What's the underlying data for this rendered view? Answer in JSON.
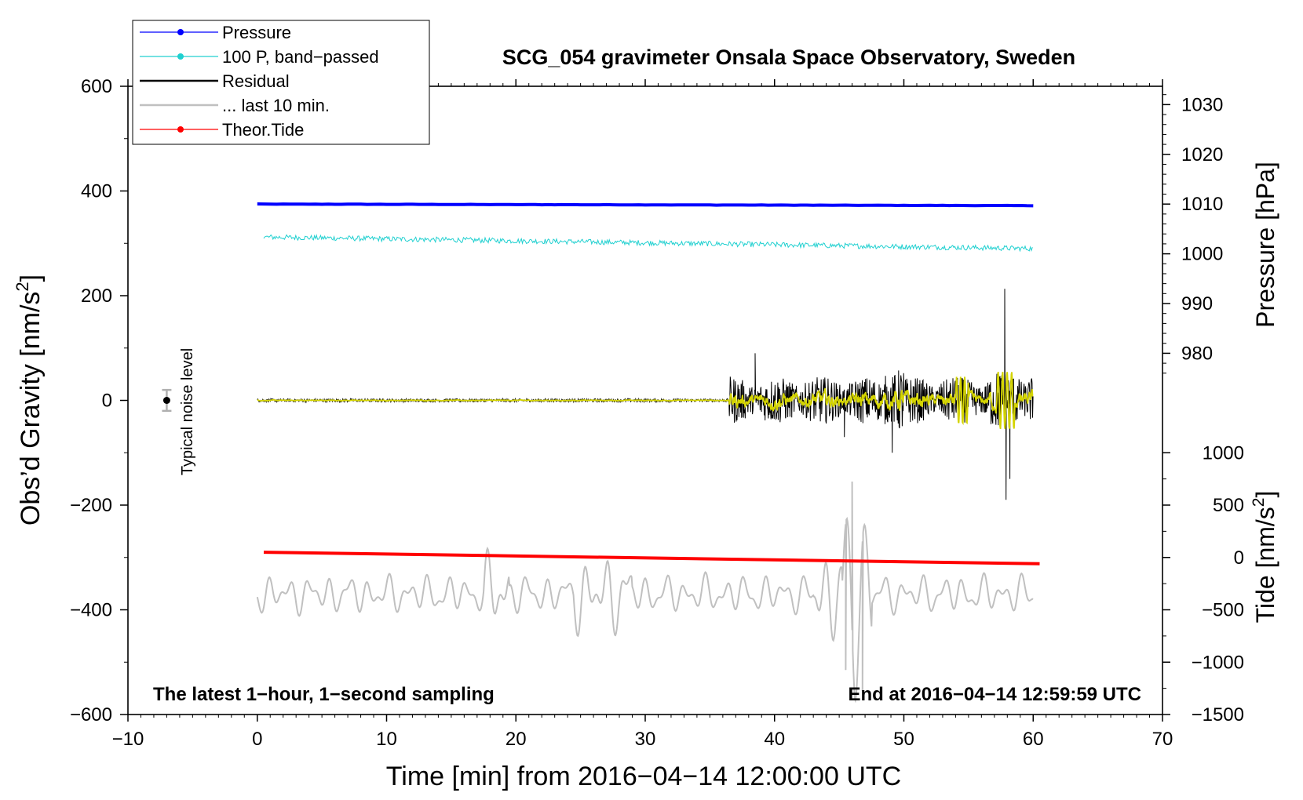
{
  "chart_data": {
    "type": "line",
    "title": "SCG_054 gravimeter Onsala Space Observatory, Sweden",
    "xlabel": "Time [min] from 2016−04−14 12:00:00 UTC",
    "ylabel": "Obs’d Gravity [nm/s",
    "ylabel_sup": "2",
    "ylabel_end": "]",
    "xlim": [
      -10,
      70
    ],
    "ylim": [
      -600,
      600
    ],
    "x_ticks": [
      -10,
      0,
      10,
      20,
      30,
      40,
      50,
      60,
      70
    ],
    "x_tick_labels": [
      "−10",
      "0",
      "10",
      "20",
      "30",
      "40",
      "50",
      "60",
      "70"
    ],
    "y_ticks": [
      -600,
      -400,
      -200,
      0,
      200,
      400,
      600
    ],
    "y_tick_labels": [
      "−600",
      "−400",
      "−200",
      "0",
      "200",
      "400",
      "600"
    ],
    "right_axes": [
      {
        "name": "pressure",
        "label": "Pressure [hPa]",
        "ticks": [
          980,
          990,
          1000,
          1010,
          1020,
          1030
        ],
        "tick_labels": [
          "980",
          "990",
          "1000",
          "1010",
          "1020",
          "1030"
        ],
        "mapping": {
          "hpa_a": 1010,
          "grav_a": 375,
          "hpa_b": 980,
          "grav_b": 90
        }
      },
      {
        "name": "tide",
        "label": "Tide [nm/s",
        "label_sup": "2",
        "label_end": "]",
        "ticks": [
          -1500,
          -1000,
          -500,
          0,
          500,
          1000
        ],
        "tick_labels": [
          "−1500",
          "−1000",
          "−500",
          "0",
          "500",
          "1000"
        ],
        "mapping": {
          "tide_a": 0,
          "grav_a": -300,
          "tide_b": 1000,
          "grav_b": -100
        }
      }
    ],
    "legend": {
      "placement": "top-left",
      "entries": [
        {
          "label": "Pressure",
          "color": "#0000ff",
          "marker": true
        },
        {
          "label": "100 P, band−passed",
          "color": "#20d0d0",
          "marker": true
        },
        {
          "label": "Residual",
          "color": "#000000",
          "marker": false
        },
        {
          "label": "... last 10 min.",
          "color": "#c0c0c0",
          "marker": false
        },
        {
          "label": "Theor.Tide",
          "color": "#ff0000",
          "marker": true
        }
      ]
    },
    "series": [
      {
        "name": "Pressure",
        "color": "#0000ff",
        "x_range": [
          0,
          60
        ],
        "y_start": 375,
        "y_end": 372
      },
      {
        "name": "100 P, band-passed",
        "color": "#20d0d0",
        "x_range": [
          0.5,
          60
        ],
        "y_start": 312,
        "y_end": 290,
        "noise": 5
      },
      {
        "name": "Residual",
        "color": "#000000",
        "x_range": [
          0,
          60
        ],
        "quiet_until": 36.5,
        "quiet_amplitude": 3,
        "active_amplitude": 35,
        "spikes": [
          {
            "x": 57.8,
            "y": 213
          },
          {
            "x": 57.9,
            "y": -190
          },
          {
            "x": 49.1,
            "y": -100
          },
          {
            "x": 58.2,
            "y": -150
          },
          {
            "x": 38.5,
            "y": 90
          },
          {
            "x": 45.4,
            "y": -70
          }
        ]
      },
      {
        "name": "Residual filtered",
        "color": "#d4d400",
        "x_range": [
          0,
          60
        ]
      },
      {
        "name": "... last 10 min.",
        "color": "#c0c0c0",
        "x_range": [
          0,
          60
        ],
        "baseline": -370,
        "amplitude": 35,
        "extremes": [
          {
            "x": 46.0,
            "y": -155
          },
          {
            "x": 45.5,
            "y": -515
          },
          {
            "x": 46.8,
            "y": -555
          }
        ]
      },
      {
        "name": "Theor.Tide",
        "color": "#ff0000",
        "x_range": [
          0.5,
          60.5
        ],
        "y_start": -290,
        "y_end": -312
      }
    ],
    "noise_bar": {
      "x": -7,
      "y": 0,
      "half_range": 20,
      "label": "Typical noise level"
    },
    "annotations": {
      "bottom_left": "The latest 1−hour, 1−second sampling",
      "bottom_right": "End at 2016−04−14 12:59:59 UTC"
    }
  }
}
